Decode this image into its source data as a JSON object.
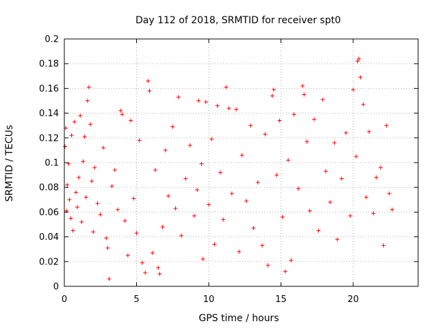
{
  "chart_data": {
    "type": "scatter",
    "title": "Day 112 of 2018, SRMTID for receiver spt0",
    "xlabel": "GPS time / hours",
    "ylabel": "SRMTID / TECUs",
    "xlim": [
      0,
      24.5
    ],
    "ylim": [
      0,
      0.2
    ],
    "x_ticks": [
      "0",
      "5",
      "10",
      "15",
      "20"
    ],
    "x_tick_values": [
      0,
      5,
      10,
      15,
      20
    ],
    "y_ticks": [
      "0",
      "0.02",
      "0.04",
      "0.06",
      "0.08",
      "0.1",
      "0.12",
      "0.14",
      "0.16",
      "0.18",
      "0.2"
    ],
    "y_tick_values": [
      0,
      0.02,
      0.04,
      0.06,
      0.08,
      0.1,
      0.12,
      0.14,
      0.16,
      0.18,
      0.2
    ],
    "grid": true,
    "marker": "plus",
    "color": "#ff0000",
    "series": [
      {
        "points": [
          [
            0.05,
            0.113
          ],
          [
            0.1,
            0.128
          ],
          [
            0.15,
            0.061
          ],
          [
            0.2,
            0.082
          ],
          [
            0.3,
            0.099
          ],
          [
            0.35,
            0.07
          ],
          [
            0.45,
            0.055
          ],
          [
            0.5,
            0.122
          ],
          [
            0.6,
            0.045
          ],
          [
            0.7,
            0.133
          ],
          [
            0.8,
            0.076
          ],
          [
            0.9,
            0.064
          ],
          [
            1.0,
            0.088
          ],
          [
            1.1,
            0.138
          ],
          [
            1.2,
            0.052
          ],
          [
            1.3,
            0.101
          ],
          [
            1.4,
            0.121
          ],
          [
            1.5,
            0.072
          ],
          [
            1.6,
            0.15
          ],
          [
            1.7,
            0.161
          ],
          [
            1.8,
            0.131
          ],
          [
            1.9,
            0.085
          ],
          [
            2.0,
            0.044
          ],
          [
            2.1,
            0.096
          ],
          [
            2.3,
            0.067
          ],
          [
            2.5,
            0.058
          ],
          [
            2.7,
            0.112
          ],
          [
            2.9,
            0.039
          ],
          [
            3.0,
            0.031
          ],
          [
            3.1,
            0.006
          ],
          [
            3.3,
            0.081
          ],
          [
            3.5,
            0.094
          ],
          [
            3.7,
            0.062
          ],
          [
            3.9,
            0.142
          ],
          [
            4.0,
            0.139
          ],
          [
            4.2,
            0.053
          ],
          [
            4.4,
            0.025
          ],
          [
            4.6,
            0.134
          ],
          [
            4.8,
            0.071
          ],
          [
            5.0,
            0.043
          ],
          [
            5.2,
            0.118
          ],
          [
            5.4,
            0.019
          ],
          [
            5.6,
            0.011
          ],
          [
            5.8,
            0.166
          ],
          [
            5.9,
            0.158
          ],
          [
            6.1,
            0.027
          ],
          [
            6.3,
            0.094
          ],
          [
            6.5,
            0.015
          ],
          [
            6.6,
            0.01
          ],
          [
            6.8,
            0.048
          ],
          [
            7.0,
            0.11
          ],
          [
            7.2,
            0.073
          ],
          [
            7.5,
            0.129
          ],
          [
            7.7,
            0.063
          ],
          [
            7.9,
            0.153
          ],
          [
            8.1,
            0.041
          ],
          [
            8.4,
            0.087
          ],
          [
            8.7,
            0.114
          ],
          [
            9.0,
            0.057
          ],
          [
            9.2,
            0.078
          ],
          [
            9.3,
            0.15
          ],
          [
            9.5,
            0.099
          ],
          [
            9.6,
            0.022
          ],
          [
            9.8,
            0.149
          ],
          [
            10.0,
            0.066
          ],
          [
            10.2,
            0.119
          ],
          [
            10.4,
            0.034
          ],
          [
            10.6,
            0.146
          ],
          [
            10.8,
            0.092
          ],
          [
            11.0,
            0.054
          ],
          [
            11.2,
            0.161
          ],
          [
            11.4,
            0.144
          ],
          [
            11.6,
            0.075
          ],
          [
            11.9,
            0.143
          ],
          [
            12.1,
            0.028
          ],
          [
            12.3,
            0.106
          ],
          [
            12.6,
            0.069
          ],
          [
            12.9,
            0.13
          ],
          [
            13.1,
            0.047
          ],
          [
            13.4,
            0.084
          ],
          [
            13.7,
            0.033
          ],
          [
            13.9,
            0.123
          ],
          [
            14.1,
            0.017
          ],
          [
            14.4,
            0.154
          ],
          [
            14.5,
            0.159
          ],
          [
            14.7,
            0.09
          ],
          [
            14.9,
            0.134
          ],
          [
            15.1,
            0.056
          ],
          [
            15.3,
            0.012
          ],
          [
            15.5,
            0.102
          ],
          [
            15.7,
            0.021
          ],
          [
            15.9,
            0.139
          ],
          [
            16.2,
            0.079
          ],
          [
            16.5,
            0.162
          ],
          [
            16.6,
            0.155
          ],
          [
            16.8,
            0.117
          ],
          [
            17.0,
            0.061
          ],
          [
            17.3,
            0.135
          ],
          [
            17.6,
            0.045
          ],
          [
            17.9,
            0.151
          ],
          [
            18.1,
            0.093
          ],
          [
            18.4,
            0.068
          ],
          [
            18.7,
            0.116
          ],
          [
            18.9,
            0.038
          ],
          [
            19.2,
            0.087
          ],
          [
            19.5,
            0.124
          ],
          [
            19.8,
            0.057
          ],
          [
            20.0,
            0.159
          ],
          [
            20.2,
            0.105
          ],
          [
            20.3,
            0.182
          ],
          [
            20.4,
            0.184
          ],
          [
            20.5,
            0.169
          ],
          [
            20.7,
            0.147
          ],
          [
            20.9,
            0.072
          ],
          [
            21.1,
            0.125
          ],
          [
            21.4,
            0.059
          ],
          [
            21.6,
            0.088
          ],
          [
            21.9,
            0.096
          ],
          [
            22.1,
            0.033
          ],
          [
            22.3,
            0.13
          ],
          [
            22.5,
            0.075
          ],
          [
            22.7,
            0.062
          ]
        ]
      }
    ]
  }
}
